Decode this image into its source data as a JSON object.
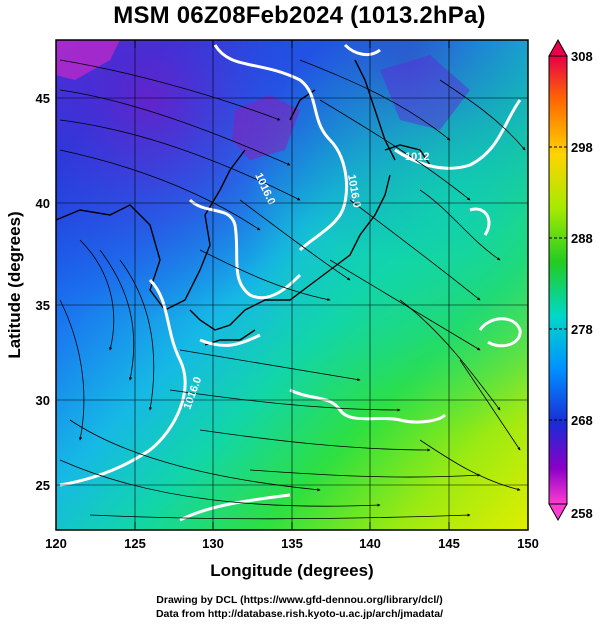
{
  "title": "MSM 06Z08Feb2024 (1013.2hPa)",
  "x_axis": {
    "label": "Longitude (degrees)",
    "ticks": [
      "120",
      "125",
      "130",
      "135",
      "140",
      "145",
      "150"
    ]
  },
  "y_axis": {
    "label": "Latitude  (degrees)",
    "ticks": [
      "25",
      "30",
      "35",
      "40",
      "45"
    ]
  },
  "colorbar": {
    "ticks": [
      "308",
      "298",
      "288",
      "278",
      "268",
      "258"
    ],
    "colors": [
      "#e8004a",
      "#ff6a00",
      "#ffd400",
      "#a6ea00",
      "#22cc22",
      "#00d8c8",
      "#0090ff",
      "#1a2bd6",
      "#8a00c8",
      "#ff3cd2"
    ]
  },
  "contour_labels": [
    "1016.0",
    "1016.0",
    "1012",
    "1016.0"
  ],
  "credits": {
    "line1": "Drawing by DCL (https://www.gfd-dennou.org/library/dcl/)",
    "line2": "Data from http://database.rish.kyoto-u.ac.jp/arch/jmadata/"
  }
}
